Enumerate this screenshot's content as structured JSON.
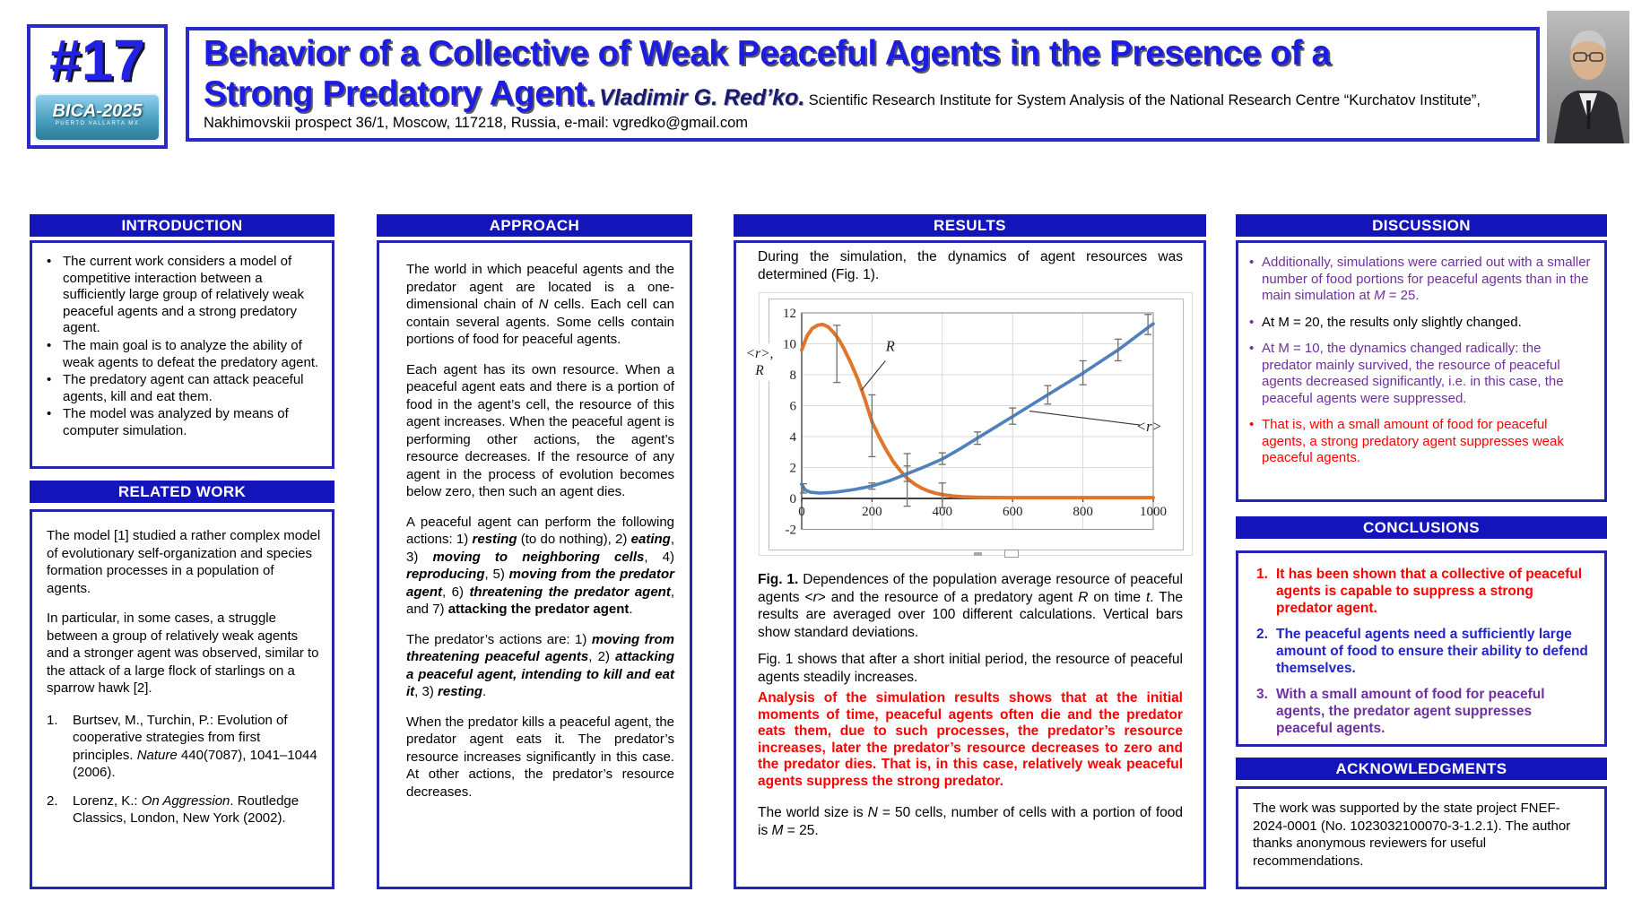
{
  "ui": {
    "bullet": "•"
  },
  "header": {
    "number": "#17",
    "logo_text": "BICA-2025",
    "logo_sub": "PUERTO VALLARTA MX",
    "title_line1": "Behavior of a Collective of Weak Peaceful Agents in the Presence of a",
    "title_line2": "Strong Predatory Agent.",
    "author": "Vladimir G. Red’ko.",
    "affiliation": "Scientific Research Institute for System Analysis of the National Research Centre “Kurchatov Institute”, Nakhimovskii prospect 36/1, Moscow, 117218, Russia, e-mail: vgredko@gmail.com"
  },
  "introduction": {
    "title": "INTRODUCTION",
    "bullets": [
      "The current work considers a model of competitive interaction between a sufficiently large group of relatively weak peaceful agents and a strong predatory agent.",
      "The main goal is to analyze the ability of weak agents to defeat the predatory agent.",
      "The predatory agent can attack peaceful agents, kill and eat them.",
      "The model was analyzed by means of computer simulation."
    ]
  },
  "related_work": {
    "title": "RELATED WORK",
    "p1": "The model [1] studied a rather complex model of evolutionary self-organization and species formation processes in a population of agents.",
    "p2": "In particular, in some cases, a struggle between a group of relatively weak agents and a stronger agent was observed, similar to the attack of a large flock of starlings on a sparrow hawk [2].",
    "references": [
      {
        "num": "1.",
        "segments": [
          [
            "",
            "Burtsev, M., Turchin, P.: Evolution of cooperative strategies from first principles. "
          ],
          [
            "i",
            "Nature"
          ],
          [
            "",
            " 440(7087), 1041–1044 (2006)."
          ]
        ]
      },
      {
        "num": "2.",
        "segments": [
          [
            "",
            "Lorenz, K.: "
          ],
          [
            "i",
            "On Aggression"
          ],
          [
            "",
            ". Routledge Classics, London, New York (2002)."
          ]
        ]
      }
    ]
  },
  "approach": {
    "title": "APPROACH",
    "paragraphs": [
      [
        [
          "",
          "The world in which peaceful agents and the predator agent are located is a one-dimensional chain of "
        ],
        [
          "i",
          "N"
        ],
        [
          "",
          " cells. Each cell can contain several agents. Some cells contain portions of food for peaceful agents."
        ]
      ],
      [
        [
          "",
          "Each agent has its own resource. When a peaceful agent eats and there is a portion of food in the agent’s cell, the resource of this agent increases. When the peaceful agent is performing other actions, the agent’s resource decreases. If the resource of any agent in the process of evolution becomes below zero, then such an agent dies."
        ]
      ],
      [
        [
          "",
          "A peaceful agent can perform the following actions: 1) "
        ],
        [
          "bi",
          "resting"
        ],
        [
          "",
          " (to do nothing), 2) "
        ],
        [
          "bi",
          "eating"
        ],
        [
          "",
          ", 3) "
        ],
        [
          "bi",
          "moving to neighboring cells"
        ],
        [
          "",
          ", 4) "
        ],
        [
          "bi",
          "reproducing"
        ],
        [
          "",
          ", 5) "
        ],
        [
          "bi",
          "moving from the predator agent"
        ],
        [
          "",
          ", 6) "
        ],
        [
          "bi",
          "threatening the predator agent"
        ],
        [
          "",
          ", and 7) "
        ],
        [
          "b",
          "attacking the predator agent"
        ],
        [
          "",
          "."
        ]
      ],
      [
        [
          "",
          "The predator’s actions are: 1) "
        ],
        [
          "bi",
          "moving from threatening peaceful agents"
        ],
        [
          "",
          ", 2) "
        ],
        [
          "bi",
          "attacking a peaceful agent, intending to kill and eat it"
        ],
        [
          "",
          ", 3) "
        ],
        [
          "bi",
          "resting"
        ],
        [
          "",
          "."
        ]
      ],
      [
        [
          "",
          "When the predator kills a peaceful agent, the predator agent eats it. The predator’s resource increases significantly in this case. At other actions, the predator’s resource decreases."
        ]
      ]
    ]
  },
  "results": {
    "title": "RESULTS",
    "p1": "During the simulation, the dynamics of agent resources was determined (Fig. 1).",
    "caption": [
      [
        "b",
        "Fig. 1."
      ],
      [
        "",
        " Dependences of the population average resource of peaceful agents <"
      ],
      [
        "i",
        "r"
      ],
      [
        "",
        "> and the resource of a predatory agent "
      ],
      [
        "i",
        "R"
      ],
      [
        "",
        " on time "
      ],
      [
        "i",
        "t"
      ],
      [
        "",
        ". The results are averaged over 100 different calculations. Vertical bars show standard deviations."
      ]
    ],
    "p2": "Fig. 1 shows that after a short initial period, the resource of peaceful agents steadily increases.",
    "p_red": "Analysis of the simulation results shows that at the initial moments of time, peaceful agents often die and the predator eats them, due to such processes, the predator’s resource increases, later the predator’s resource decreases to zero and the predator dies. That is, in this case, relatively weak peaceful agents suppress the strong predator.",
    "p3": [
      [
        "",
        "The world size is "
      ],
      [
        "i",
        "N"
      ],
      [
        "",
        " = 50 cells, number of cells with a portion of food is "
      ],
      [
        "i",
        "M"
      ],
      [
        "",
        " = 25."
      ]
    ]
  },
  "discussion": {
    "title": "DISCUSSION",
    "bullets": [
      {
        "color": "purple",
        "segments": [
          [
            "",
            "Additionally, simulations were carried out with a smaller number of food portions for peaceful agents than in the main simulation at "
          ],
          [
            "i",
            "M"
          ],
          [
            "",
            " = 25."
          ]
        ]
      },
      {
        "color": "black",
        "segments": [
          [
            "",
            "At M = 20, the results only slightly changed."
          ]
        ]
      },
      {
        "color": "purple",
        "segments": [
          [
            "",
            "At M = 10, the dynamics changed radically: the predator mainly survived, the resource of peaceful agents decreased significantly, i.e. in this case, the peaceful agents were suppressed."
          ]
        ]
      },
      {
        "color": "red",
        "segments": [
          [
            "",
            "That is, with a small amount of food for peaceful agents, a strong predatory agent suppresses weak peaceful agents."
          ]
        ]
      }
    ]
  },
  "conclusions": {
    "title": "CONCLUSIONS",
    "items": [
      {
        "num": "1.",
        "color": "red",
        "text": "It has been shown that a collective of peaceful agents is capable to suppress a strong predator agent."
      },
      {
        "num": "2.",
        "color": "blue",
        "text": "The peaceful agents need a sufficiently large amount of food to ensure their ability to defend themselves."
      },
      {
        "num": "3.",
        "color": "purple",
        "text": "With a small amount of food for peaceful agents, the predator agent suppresses peaceful agents."
      }
    ]
  },
  "acknowledgments": {
    "title": "ACKNOWLEDGMENTS",
    "text": "The work was supported by the state project FNEF-2024-0001 (No. 1023032100070-3-1.2.1). The author thanks anonymous reviewers for useful recommendations."
  },
  "colors": {
    "bar_blue": "#1414bb",
    "border_blue": "#2525b2",
    "title_blue": "#1c1ce2",
    "red": "#ff0000",
    "purple": "#7030a0",
    "conclusion_blue": "#2424cc",
    "series_R_orange": "#e0762c",
    "series_r_blue": "#4f81bd"
  },
  "chart_data": {
    "type": "line",
    "title": "",
    "xlabel": "",
    "ylabel_line1": "<r>,",
    "ylabel_line2": "R",
    "xlim": [
      0,
      1000
    ],
    "ylim": [
      -2,
      12
    ],
    "x_ticks": [
      0,
      200,
      400,
      600,
      800,
      1000
    ],
    "y_ticks": [
      -2,
      0,
      2,
      4,
      6,
      8,
      10,
      12
    ],
    "grid": true,
    "legend": "none",
    "series": [
      {
        "name": "R",
        "color": "#e0762c",
        "width": 4,
        "x": [
          0,
          15,
          30,
          45,
          60,
          75,
          90,
          105,
          120,
          140,
          160,
          180,
          200,
          220,
          240,
          260,
          280,
          300,
          320,
          340,
          360,
          380,
          400,
          430,
          460,
          500,
          550,
          600,
          700,
          800,
          900,
          1000
        ],
        "y": [
          9.6,
          10.5,
          11.0,
          11.2,
          11.25,
          11.1,
          10.75,
          10.3,
          9.7,
          8.75,
          7.7,
          6.4,
          4.95,
          4.0,
          3.15,
          2.4,
          1.8,
          1.3,
          0.95,
          0.68,
          0.48,
          0.34,
          0.25,
          0.15,
          0.1,
          0.07,
          0.06,
          0.05,
          0.05,
          0.05,
          0.05,
          0.05
        ],
        "error_bars": [
          [
            100,
            7.5,
            11.2
          ],
          [
            200,
            2.7,
            6.7
          ],
          [
            300,
            -0.5,
            2.9
          ],
          [
            400,
            -0.6,
            1.0
          ]
        ]
      },
      {
        "name": "<r>",
        "color": "#4f81bd",
        "width": 3.6,
        "x": [
          0,
          10,
          25,
          50,
          75,
          100,
          150,
          200,
          250,
          300,
          350,
          400,
          450,
          500,
          550,
          600,
          650,
          700,
          750,
          800,
          850,
          900,
          950,
          1000
        ],
        "y": [
          0.9,
          0.55,
          0.4,
          0.35,
          0.37,
          0.42,
          0.58,
          0.8,
          1.15,
          1.6,
          2.05,
          2.55,
          3.2,
          3.9,
          4.6,
          5.3,
          6.0,
          6.7,
          7.4,
          8.1,
          8.85,
          9.6,
          10.45,
          11.3
        ],
        "error_bars": [
          [
            5,
            0.35,
            0.95
          ],
          [
            200,
            0.6,
            1.0
          ],
          [
            300,
            1.1,
            2.1
          ],
          [
            400,
            2.2,
            2.95
          ],
          [
            500,
            3.5,
            4.3
          ],
          [
            600,
            4.8,
            5.85
          ],
          [
            700,
            6.1,
            7.3
          ],
          [
            800,
            7.35,
            8.9
          ],
          [
            900,
            8.9,
            10.3
          ],
          [
            985,
            10.6,
            11.9
          ]
        ]
      }
    ],
    "annotations": [
      {
        "text": "R",
        "x": 252,
        "y": 9.55,
        "line": [
          [
            238,
            8.9
          ],
          [
            170,
            7.0
          ]
        ]
      },
      {
        "text": "<r>",
        "x": 988,
        "y": 4.35,
        "line": [
          [
            648,
            5.65
          ],
          [
            962,
            4.75
          ]
        ]
      }
    ]
  }
}
